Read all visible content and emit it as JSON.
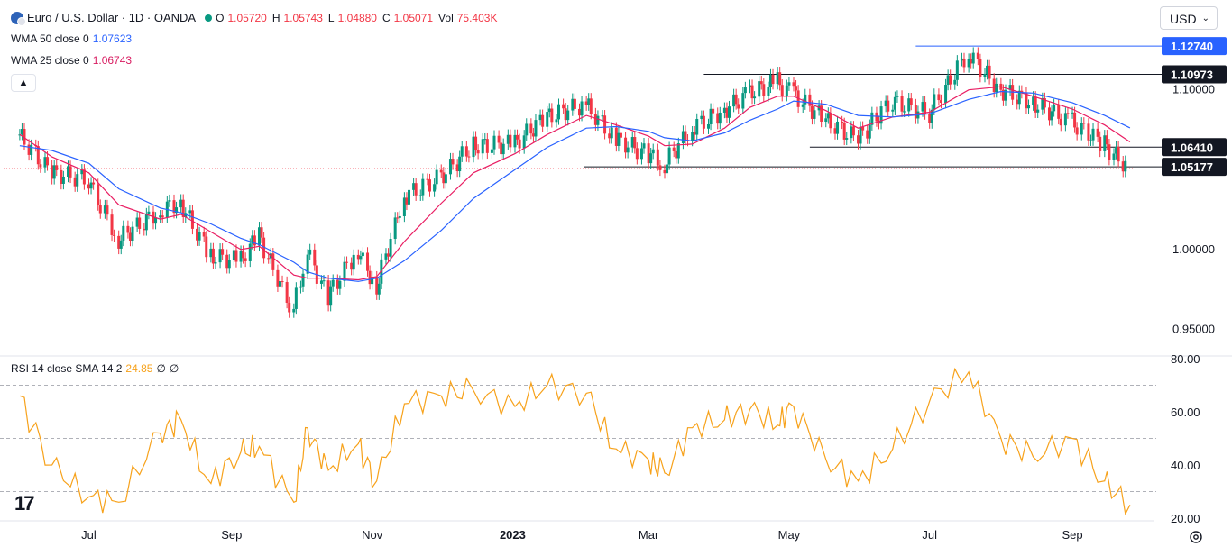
{
  "header": {
    "symbol": "Euro / U.S. Dollar · 1D · OANDA",
    "ohlc": {
      "o_label": "O",
      "o_value": "1.05720",
      "h_label": "H",
      "h_value": "1.05743",
      "l_label": "L",
      "l_value": "1.04880",
      "c_label": "C",
      "c_value": "1.05071",
      "vol_label": "Vol",
      "vol_value": "75.403K"
    },
    "wma50": {
      "label": "WMA 50 close 0",
      "value": "1.07623"
    },
    "wma25": {
      "label": "WMA 25 close 0",
      "value": "1.06743"
    },
    "collapse_icon": "chevron-up-icon"
  },
  "currency": {
    "label": "USD",
    "icon": "chevron-down-icon"
  },
  "rsi": {
    "label": "RSI 14 close SMA 14 2",
    "value": "24.85",
    "extra1": "∅",
    "extra2": "∅"
  },
  "colors": {
    "up": "#089981",
    "down": "#f23645",
    "wma50": "#2962ff",
    "wma25": "#e91e63",
    "rsi": "#f7a21b",
    "hline": "#131722",
    "label_bg": "#131722",
    "blue_label_bg": "#2962ff"
  },
  "chart_data": [
    {
      "type": "line",
      "title": "Euro / U.S. Dollar · 1D · OANDA",
      "x": [
        "2022-06-01",
        "2022-06-15",
        "2022-07-01",
        "2022-07-14",
        "2022-08-01",
        "2022-08-10",
        "2022-08-23",
        "2022-09-05",
        "2022-09-13",
        "2022-09-28",
        "2022-10-04",
        "2022-10-13",
        "2022-10-26",
        "2022-11-03",
        "2022-11-15",
        "2022-12-01",
        "2022-12-15",
        "2023-01-02",
        "2023-01-16",
        "2023-02-02",
        "2023-02-15",
        "2023-03-01",
        "2023-03-08",
        "2023-03-20",
        "2023-04-03",
        "2023-04-14",
        "2023-04-26",
        "2023-05-03",
        "2023-05-17",
        "2023-05-31",
        "2023-06-15",
        "2023-07-01",
        "2023-07-18",
        "2023-08-01",
        "2023-08-15",
        "2023-09-01",
        "2023-09-15",
        "2023-09-26"
      ],
      "series": [
        {
          "values": [
            1.072,
            1.048,
            1.044,
            1.006,
            1.024,
            1.03,
            0.996,
            0.993,
            1.009,
            0.961,
            0.999,
            0.97,
            1.0,
            0.976,
            1.033,
            1.045,
            1.065,
            1.066,
            1.083,
            1.091,
            1.069,
            1.06,
            1.053,
            1.076,
            1.087,
            1.098,
            1.105,
            1.098,
            1.081,
            1.069,
            1.093,
            1.085,
            1.123,
            1.1,
            1.092,
            1.08,
            1.066,
            1.0507
          ]
        },
        {
          "values": [
            1.072,
            1.058,
            1.048,
            1.028,
            1.019,
            1.022,
            1.011,
            1.0,
            1.002,
            0.984,
            0.982,
            0.982,
            0.981,
            0.983,
            1.005,
            1.029,
            1.048,
            1.06,
            1.072,
            1.084,
            1.078,
            1.071,
            1.065,
            1.066,
            1.076,
            1.089,
            1.096,
            1.096,
            1.087,
            1.076,
            1.083,
            1.086,
            1.1,
            1.102,
            1.096,
            1.088,
            1.078,
            1.0674
          ]
        },
        {
          "values": [
            1.065,
            1.062,
            1.054,
            1.038,
            1.026,
            1.023,
            1.016,
            1.007,
            1.003,
            0.992,
            0.986,
            0.982,
            0.98,
            0.982,
            0.993,
            1.012,
            1.032,
            1.05,
            1.064,
            1.076,
            1.077,
            1.074,
            1.07,
            1.068,
            1.073,
            1.081,
            1.088,
            1.093,
            1.091,
            1.084,
            1.083,
            1.085,
            1.094,
            1.099,
            1.098,
            1.092,
            1.084,
            1.0762
          ]
        }
      ],
      "y_ticks": [
        "1.10000",
        "1.00000",
        "0.95000"
      ],
      "ylim": [
        0.935,
        1.145
      ],
      "x_ticks": [
        "Jul",
        "Sep",
        "Nov",
        "2023",
        "Mar",
        "May",
        "Jul",
        "Sep"
      ],
      "horizontal_levels": [
        "1.12740",
        "1.10973",
        "1.06410",
        "1.05177"
      ],
      "grid": false
    },
    {
      "type": "line",
      "title": "RSI 14 close SMA 14 2",
      "x": [
        "2022-06-01",
        "2022-06-15",
        "2022-07-01",
        "2022-07-14",
        "2022-08-01",
        "2022-08-10",
        "2022-08-23",
        "2022-09-05",
        "2022-09-13",
        "2022-09-28",
        "2022-10-04",
        "2022-10-13",
        "2022-10-26",
        "2022-11-03",
        "2022-11-15",
        "2022-12-01",
        "2022-12-15",
        "2023-01-02",
        "2023-01-16",
        "2023-02-02",
        "2023-02-15",
        "2023-03-01",
        "2023-03-08",
        "2023-03-20",
        "2023-04-03",
        "2023-04-14",
        "2023-04-26",
        "2023-05-03",
        "2023-05-17",
        "2023-05-31",
        "2023-06-15",
        "2023-07-01",
        "2023-07-18",
        "2023-08-01",
        "2023-08-15",
        "2023-09-01",
        "2023-09-15",
        "2023-09-26"
      ],
      "series": [
        {
          "values": [
            66,
            40,
            28,
            26,
            52,
            57,
            33,
            45,
            47,
            26,
            54,
            38,
            48,
            34,
            63,
            66,
            68,
            62,
            70,
            67,
            46,
            42,
            37,
            54,
            57,
            61,
            55,
            62,
            42,
            34,
            46,
            64,
            75,
            50,
            43,
            50,
            34,
            25
          ]
        }
      ],
      "y_ticks": [
        "80.00",
        "60.00",
        "40.00",
        "20.00"
      ],
      "ylim": [
        20,
        80
      ],
      "reference_levels": [
        70,
        50,
        30
      ]
    }
  ]
}
